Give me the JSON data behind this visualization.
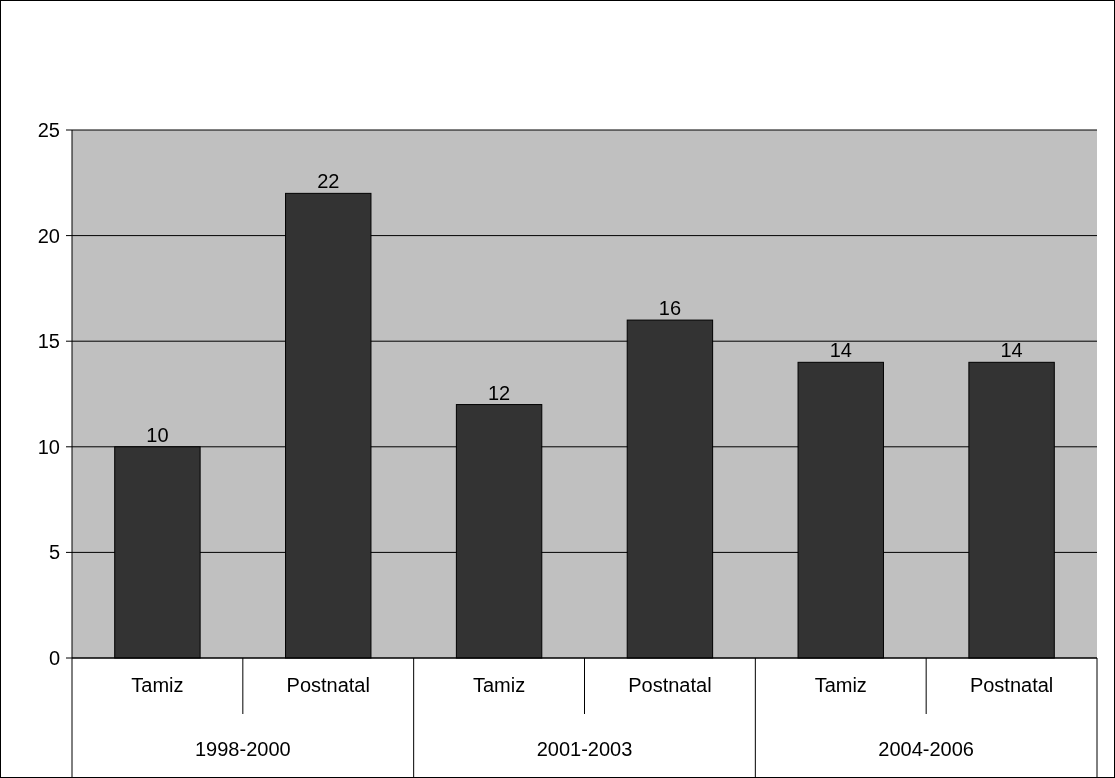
{
  "chart_data": {
    "type": "bar",
    "categories": [
      "Tamiz",
      "Postnatal",
      "Tamiz",
      "Postnatal",
      "Tamiz",
      "Postnatal"
    ],
    "values": [
      10,
      22,
      12,
      16,
      14,
      14
    ],
    "color": "#333333",
    "ylim": [
      0,
      25
    ],
    "yticks": [
      0,
      5,
      10,
      15,
      20,
      25
    ],
    "grid": "y",
    "data_labels": true,
    "annotations": [
      "1998-2000",
      "2001-2003",
      "2004-2006"
    ]
  }
}
